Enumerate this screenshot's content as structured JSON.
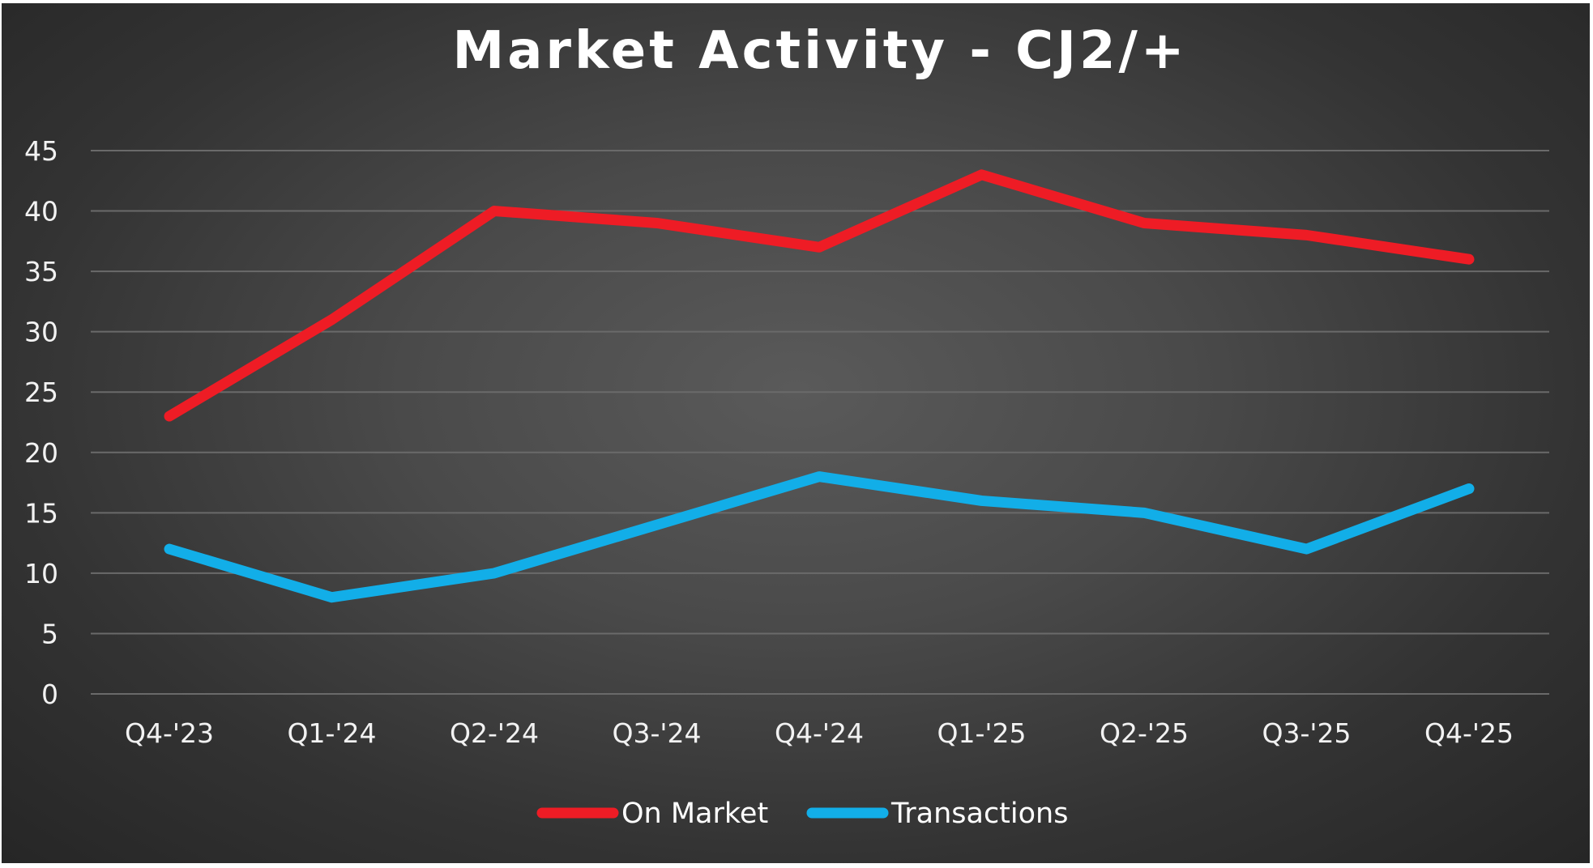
{
  "chart_data": {
    "type": "line",
    "title": "Market Activity - CJ2/+",
    "xlabel": "",
    "ylabel": "",
    "categories": [
      "Q4-'23",
      "Q1-'24",
      "Q2-'24",
      "Q3-'24",
      "Q4-'24",
      "Q1-'25",
      "Q2-'25",
      "Q3-'25",
      "Q4-'25"
    ],
    "ylim": [
      0,
      45
    ],
    "yticks": [
      0,
      5,
      10,
      15,
      20,
      25,
      30,
      35,
      40,
      45
    ],
    "grid": true,
    "legend_position": "bottom",
    "series": [
      {
        "name": "On Market",
        "color": "#ee1c25",
        "values": [
          23,
          31,
          40,
          39,
          37,
          43,
          39,
          38,
          36
        ]
      },
      {
        "name": "Transactions",
        "color": "#12aee8",
        "values": [
          12,
          8,
          10,
          14,
          18,
          16,
          15,
          12,
          17
        ]
      }
    ]
  }
}
